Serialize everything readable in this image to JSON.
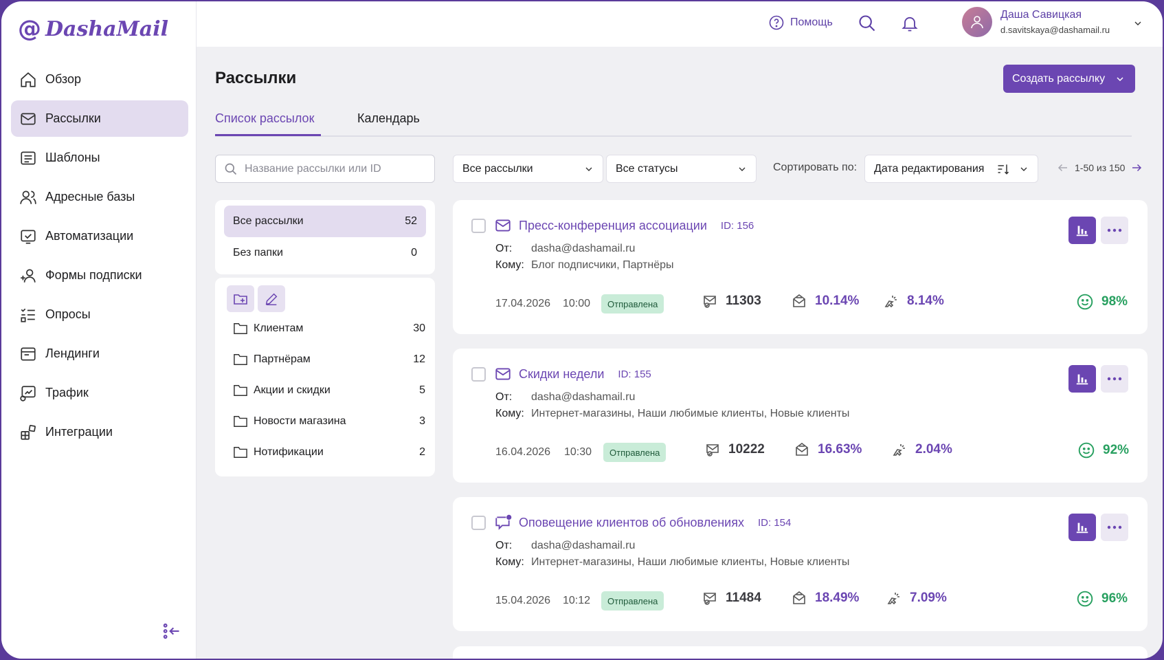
{
  "brand": {
    "at": "@",
    "name": "DashaMail"
  },
  "sidebar": {
    "items": [
      {
        "label": "Обзор",
        "icon": "home-icon"
      },
      {
        "label": "Рассылки",
        "icon": "mail-icon"
      },
      {
        "label": "Шаблоны",
        "icon": "template-icon"
      },
      {
        "label": "Адресные базы",
        "icon": "contacts-icon"
      },
      {
        "label": "Автоматизации",
        "icon": "automation-icon"
      },
      {
        "label": "Формы подписки",
        "icon": "add-user-icon"
      },
      {
        "label": "Опросы",
        "icon": "survey-icon"
      },
      {
        "label": "Лендинги",
        "icon": "landing-icon"
      },
      {
        "label": "Трафик",
        "icon": "traffic-icon"
      },
      {
        "label": "Интеграции",
        "icon": "integration-icon"
      }
    ],
    "active_index": 1
  },
  "header": {
    "help_label": "Помощь",
    "user_name": "Даша Савицкая",
    "user_email": "d.savitskaya@dashamail.ru"
  },
  "page": {
    "title": "Рассылки",
    "create_button": "Создать рассылку"
  },
  "tabs": [
    {
      "label": "Список рассылок",
      "active": true
    },
    {
      "label": "Календарь",
      "active": false
    }
  ],
  "search": {
    "placeholder": "Название рассылки или ID",
    "value": ""
  },
  "filters": {
    "type": "Все рассылки",
    "status": "Все статусы",
    "sort_label": "Сортировать по:",
    "sort_value": "Дата редактирования",
    "pagination": "1-50 из 150"
  },
  "groups": [
    {
      "label": "Все рассылки",
      "count": "52"
    },
    {
      "label": "Без папки",
      "count": "0"
    }
  ],
  "folders": [
    {
      "label": "Клиентам",
      "count": "30"
    },
    {
      "label": "Партнёрам",
      "count": "12"
    },
    {
      "label": "Акции и скидки",
      "count": "5"
    },
    {
      "label": "Новости магазина",
      "count": "3"
    },
    {
      "label": "Нотификации",
      "count": "2"
    }
  ],
  "campaigns": [
    {
      "title": "Пресс-конференция ассоциации",
      "id": "ID: 156",
      "icon": "mail-icon",
      "from_label": "От:",
      "from": "dasha@dashamail.ru",
      "to_label": "Кому:",
      "to": "Блог подписчики, Партнёры",
      "date": "17.04.2026",
      "time": "10:00",
      "status": "Отправлена",
      "sent": "11303",
      "opens": "10.14%",
      "clicks": "8.14%",
      "rating": "98%"
    },
    {
      "title": "Скидки недели",
      "id": "ID: 155",
      "icon": "mail-icon",
      "from_label": "От:",
      "from": "dasha@dashamail.ru",
      "to_label": "Кому:",
      "to": "Интернет-магазины, Наши любимые клиенты, Новые клиенты",
      "date": "16.04.2026",
      "time": "10:30",
      "status": "Отправлена",
      "sent": "10222",
      "opens": "16.63%",
      "clicks": "2.04%",
      "rating": "92%"
    },
    {
      "title": "Оповещение клиентов об обновлениях",
      "id": "ID: 154",
      "icon": "chat-icon",
      "from_label": "От:",
      "from": "dasha@dashamail.ru",
      "to_label": "Кому:",
      "to": "Интернет-магазины, Наши любимые клиенты, Новые клиенты",
      "date": "15.04.2026",
      "time": "10:12",
      "status": "Отправлена",
      "sent": "11484",
      "opens": "18.49%",
      "clicks": "7.09%",
      "rating": "96%"
    }
  ],
  "colors": {
    "accent": "#6b46b2",
    "accent_light": "#e3dcef",
    "success": "#28a060",
    "badge_bg": "#c9ecd8"
  }
}
